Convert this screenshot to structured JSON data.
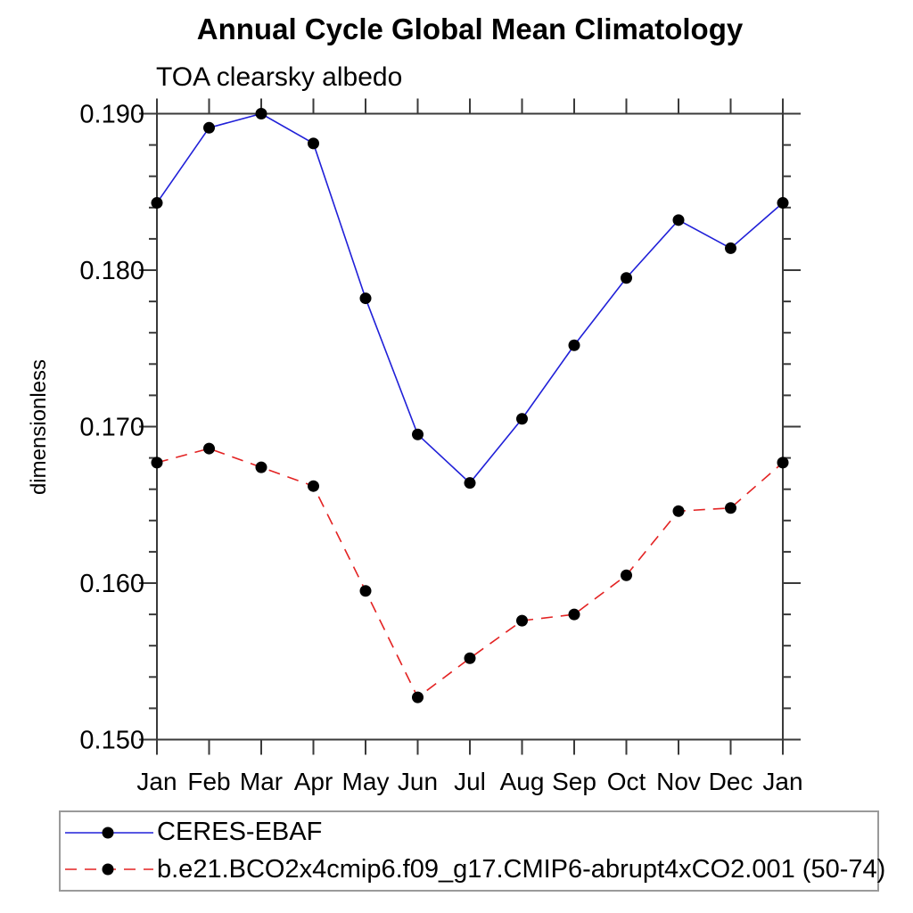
{
  "title": "Annual Cycle Global Mean Climatology",
  "subtitle": "TOA clearsky albedo",
  "ylabel": "dimensionless",
  "chart_data": {
    "type": "line",
    "categories": [
      "Jan",
      "Feb",
      "Mar",
      "Apr",
      "May",
      "Jun",
      "Jul",
      "Aug",
      "Sep",
      "Oct",
      "Nov",
      "Dec",
      "Jan"
    ],
    "series": [
      {
        "name": "CERES-EBAF",
        "style": "solid",
        "color": "#2020d8",
        "marker": "black-dot",
        "values": [
          0.1843,
          0.1891,
          0.19,
          0.1881,
          0.1782,
          0.1695,
          0.1664,
          0.1705,
          0.1752,
          0.1795,
          0.1832,
          0.1814,
          0.1843
        ]
      },
      {
        "name": "b.e21.BCO2x4cmip6.f09_g17.CMIP6-abrupt4xCO2.001 (50-74)",
        "style": "dashed",
        "color": "#e32222",
        "marker": "black-dot",
        "values": [
          0.1677,
          0.1686,
          0.1674,
          0.1662,
          0.1595,
          0.1527,
          0.1552,
          0.1576,
          0.158,
          0.1605,
          0.1646,
          0.1648,
          0.1677
        ]
      }
    ],
    "ylim": [
      0.15,
      0.19
    ],
    "ytick_major": [
      0.15,
      0.16,
      0.17,
      0.18,
      0.19
    ],
    "ytick_labels": [
      "0.150",
      "0.160",
      "0.170",
      "0.180",
      "0.190"
    ],
    "ytick_minor_step": 0.002,
    "grid": false,
    "legend_position": "bottom",
    "axes_frame": true
  },
  "colors": {
    "axis": "#3a3a3a",
    "marker": "#000000",
    "legend_border": "#9a9a9a",
    "text": "#000000"
  }
}
